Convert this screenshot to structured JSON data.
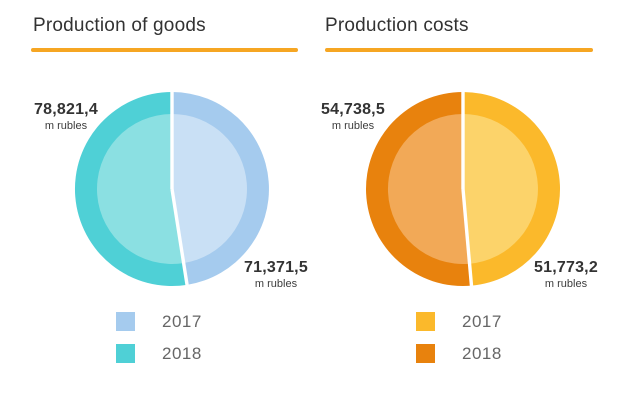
{
  "chart_data": [
    {
      "type": "pie",
      "title": "Production of goods",
      "underline_color": "#F6A623",
      "start_angle_deg": 0,
      "direction": "clockwise",
      "legend_position": "bottom",
      "unit": "m rubles",
      "series": [
        {
          "name": "2017",
          "value": 71371.5,
          "display_value": "71,371,5",
          "unit": "m rubles",
          "color": "#A5CBEE",
          "color_inner": "#C9E0F5",
          "label_position": "bottom-right",
          "side": "right-half"
        },
        {
          "name": "2018",
          "value": 78821.4,
          "display_value": "78,821,4",
          "unit": "m rubles",
          "color": "#4FD0D6",
          "color_inner": "#8BE0E2",
          "label_position": "top-left",
          "side": "left-half"
        }
      ]
    },
    {
      "type": "pie",
      "title": "Production costs",
      "underline_color": "#F6A623",
      "start_angle_deg": 0,
      "direction": "clockwise",
      "legend_position": "bottom",
      "unit": "m rubles",
      "series": [
        {
          "name": "2017",
          "value": 51773.2,
          "display_value": "51,773,2",
          "unit": "m rubles",
          "color": "#FBB92B",
          "color_inner": "#FCD36A",
          "label_position": "bottom-right",
          "side": "right-half"
        },
        {
          "name": "2018",
          "value": 54738.5,
          "display_value": "54,738,5",
          "unit": "m rubles",
          "color": "#E8820D",
          "color_inner": "#F2A957",
          "label_position": "top-left",
          "side": "left-half"
        }
      ]
    }
  ],
  "style": {
    "background": "#ffffff",
    "title_color": "#323232",
    "value_label_color": "#333333",
    "legend_text_color": "#666666",
    "divider_color": "#ffffff"
  }
}
